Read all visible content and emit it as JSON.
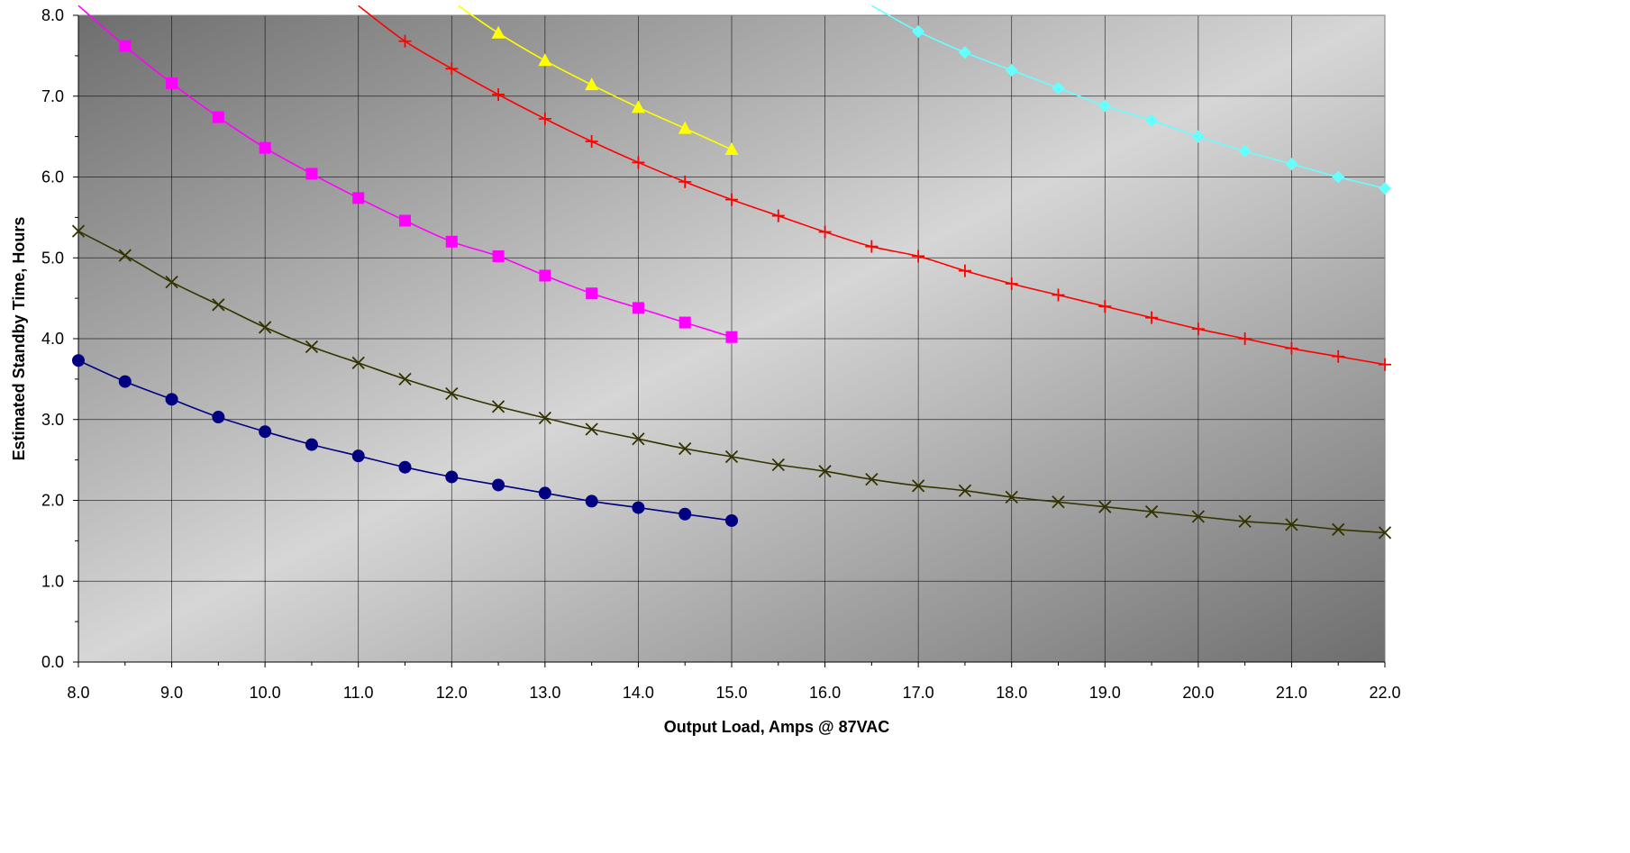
{
  "chart_data": {
    "type": "line",
    "title": "",
    "xlabel": "Output Load, Amps @ 87VAC",
    "ylabel": "Estimated Standby Time, Hours",
    "xlim": [
      8.0,
      22.0
    ],
    "ylim": [
      0.0,
      8.0
    ],
    "x_ticks": [
      8.0,
      9.0,
      10.0,
      11.0,
      12.0,
      13.0,
      14.0,
      15.0,
      16.0,
      17.0,
      18.0,
      19.0,
      20.0,
      21.0,
      22.0
    ],
    "x_tick_labels": [
      "8.0",
      "9.0",
      "10.0",
      "11.0",
      "12.0",
      "13.0",
      "14.0",
      "15.0",
      "16.0",
      "17.0",
      "18.0",
      "19.0",
      "20.0",
      "21.0",
      "22.0"
    ],
    "y_ticks": [
      0.0,
      1.0,
      2.0,
      3.0,
      4.0,
      5.0,
      6.0,
      7.0,
      8.0
    ],
    "y_tick_labels": [
      "0.0",
      "1.0",
      "2.0",
      "3.0",
      "4.0",
      "5.0",
      "6.0",
      "7.0",
      "8.0"
    ],
    "grid": true,
    "legend": "none",
    "background": {
      "light": "#d6d6d6",
      "dark": "#6e6e6e"
    },
    "series": [
      {
        "color": "#000080",
        "marker": "circle",
        "x": [
          8.0,
          8.5,
          9.0,
          9.5,
          10.0,
          10.5,
          11.0,
          11.5,
          12.0,
          12.5,
          13.0,
          13.5,
          14.0,
          14.5,
          15.0
        ],
        "y": [
          3.73,
          3.47,
          3.25,
          3.03,
          2.85,
          2.69,
          2.55,
          2.41,
          2.29,
          2.19,
          2.09,
          1.99,
          1.91,
          1.83,
          1.75
        ]
      },
      {
        "color": "#333300",
        "marker": "x",
        "x": [
          8.0,
          8.5,
          9.0,
          9.5,
          10.0,
          10.5,
          11.0,
          11.5,
          12.0,
          12.5,
          13.0,
          13.5,
          14.0,
          14.5,
          15.0,
          15.5,
          16.0,
          16.5,
          17.0,
          17.5,
          18.0,
          18.5,
          19.0,
          19.5,
          20.0,
          20.5,
          21.0,
          21.5,
          22.0
        ],
        "y": [
          5.33,
          5.03,
          4.7,
          4.42,
          4.14,
          3.9,
          3.7,
          3.5,
          3.32,
          3.16,
          3.02,
          2.88,
          2.76,
          2.64,
          2.54,
          2.44,
          2.36,
          2.26,
          2.18,
          2.12,
          2.04,
          1.98,
          1.92,
          1.86,
          1.8,
          1.74,
          1.7,
          1.64,
          1.6
        ]
      },
      {
        "color": "#ff00ff",
        "marker": "square",
        "x": [
          8.0,
          8.5,
          9.0,
          9.5,
          10.0,
          10.5,
          11.0,
          11.5,
          12.0,
          12.5,
          13.0,
          13.5,
          14.0,
          14.5,
          15.0
        ],
        "y": [
          8.12,
          7.62,
          7.16,
          6.74,
          6.36,
          6.04,
          5.74,
          5.46,
          5.2,
          5.02,
          4.78,
          4.56,
          4.38,
          4.2,
          4.02
        ]
      },
      {
        "color": "#ff0000",
        "marker": "plus",
        "x": [
          11.0,
          11.5,
          12.0,
          12.5,
          13.0,
          13.5,
          14.0,
          14.5,
          15.0,
          15.5,
          16.0,
          16.5,
          17.0,
          17.5,
          18.0,
          18.5,
          19.0,
          19.5,
          20.0,
          20.5,
          21.0,
          21.5,
          22.0
        ],
        "y": [
          8.12,
          7.68,
          7.34,
          7.02,
          6.72,
          6.44,
          6.18,
          5.94,
          5.72,
          5.52,
          5.32,
          5.14,
          5.02,
          4.84,
          4.68,
          4.54,
          4.4,
          4.26,
          4.12,
          4.0,
          3.88,
          3.78,
          3.68
        ]
      },
      {
        "color": "#ffff00",
        "marker": "triangle",
        "x": [
          12.07,
          12.5,
          13.0,
          13.5,
          14.0,
          14.5,
          15.0
        ],
        "y": [
          8.12,
          7.78,
          7.44,
          7.14,
          6.86,
          6.6,
          6.34
        ]
      },
      {
        "color": "#66ffff",
        "marker": "diamond",
        "x": [
          16.5,
          17.0,
          17.5,
          18.0,
          18.5,
          19.0,
          19.5,
          20.0,
          20.5,
          21.0,
          21.5,
          22.0
        ],
        "y": [
          8.12,
          7.8,
          7.54,
          7.32,
          7.1,
          6.88,
          6.7,
          6.5,
          6.32,
          6.16,
          6.0,
          5.86
        ]
      }
    ]
  }
}
